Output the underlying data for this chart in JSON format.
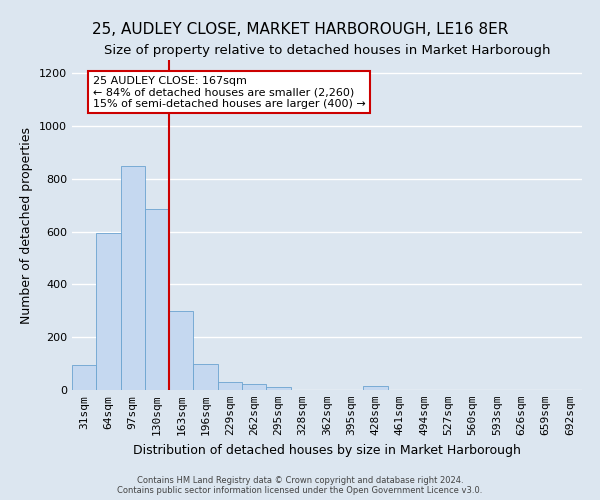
{
  "title": "25, AUDLEY CLOSE, MARKET HARBOROUGH, LE16 8ER",
  "subtitle": "Size of property relative to detached houses in Market Harborough",
  "xlabel": "Distribution of detached houses by size in Market Harborough",
  "ylabel": "Number of detached properties",
  "footer_line1": "Contains HM Land Registry data © Crown copyright and database right 2024.",
  "footer_line2": "Contains public sector information licensed under the Open Government Licence v3.0.",
  "categories": [
    "31sqm",
    "64sqm",
    "97sqm",
    "130sqm",
    "163sqm",
    "196sqm",
    "229sqm",
    "262sqm",
    "295sqm",
    "328sqm",
    "362sqm",
    "395sqm",
    "428sqm",
    "461sqm",
    "494sqm",
    "527sqm",
    "560sqm",
    "593sqm",
    "626sqm",
    "659sqm",
    "692sqm"
  ],
  "values": [
    95,
    595,
    850,
    685,
    300,
    100,
    30,
    22,
    10,
    0,
    0,
    0,
    15,
    0,
    0,
    0,
    0,
    0,
    0,
    0,
    0
  ],
  "bar_color": "#c5d8f0",
  "bar_edge_color": "#6ba3d0",
  "vline_x_index": 4,
  "vline_color": "#cc0000",
  "annotation_line1": "25 AUDLEY CLOSE: 167sqm",
  "annotation_line2": "← 84% of detached houses are smaller (2,260)",
  "annotation_line3": "15% of semi-detached houses are larger (400) →",
  "annotation_box_color": "#ffffff",
  "annotation_box_edge_color": "#cc0000",
  "ylim": [
    0,
    1250
  ],
  "yticks": [
    0,
    200,
    400,
    600,
    800,
    1000,
    1200
  ],
  "background_color": "#dce6f0",
  "plot_background_color": "#dce6f0",
  "grid_color": "#ffffff",
  "title_fontsize": 11,
  "subtitle_fontsize": 9.5,
  "xlabel_fontsize": 9,
  "ylabel_fontsize": 9,
  "tick_fontsize": 8,
  "footer_fontsize": 6,
  "annotation_fontsize": 8
}
